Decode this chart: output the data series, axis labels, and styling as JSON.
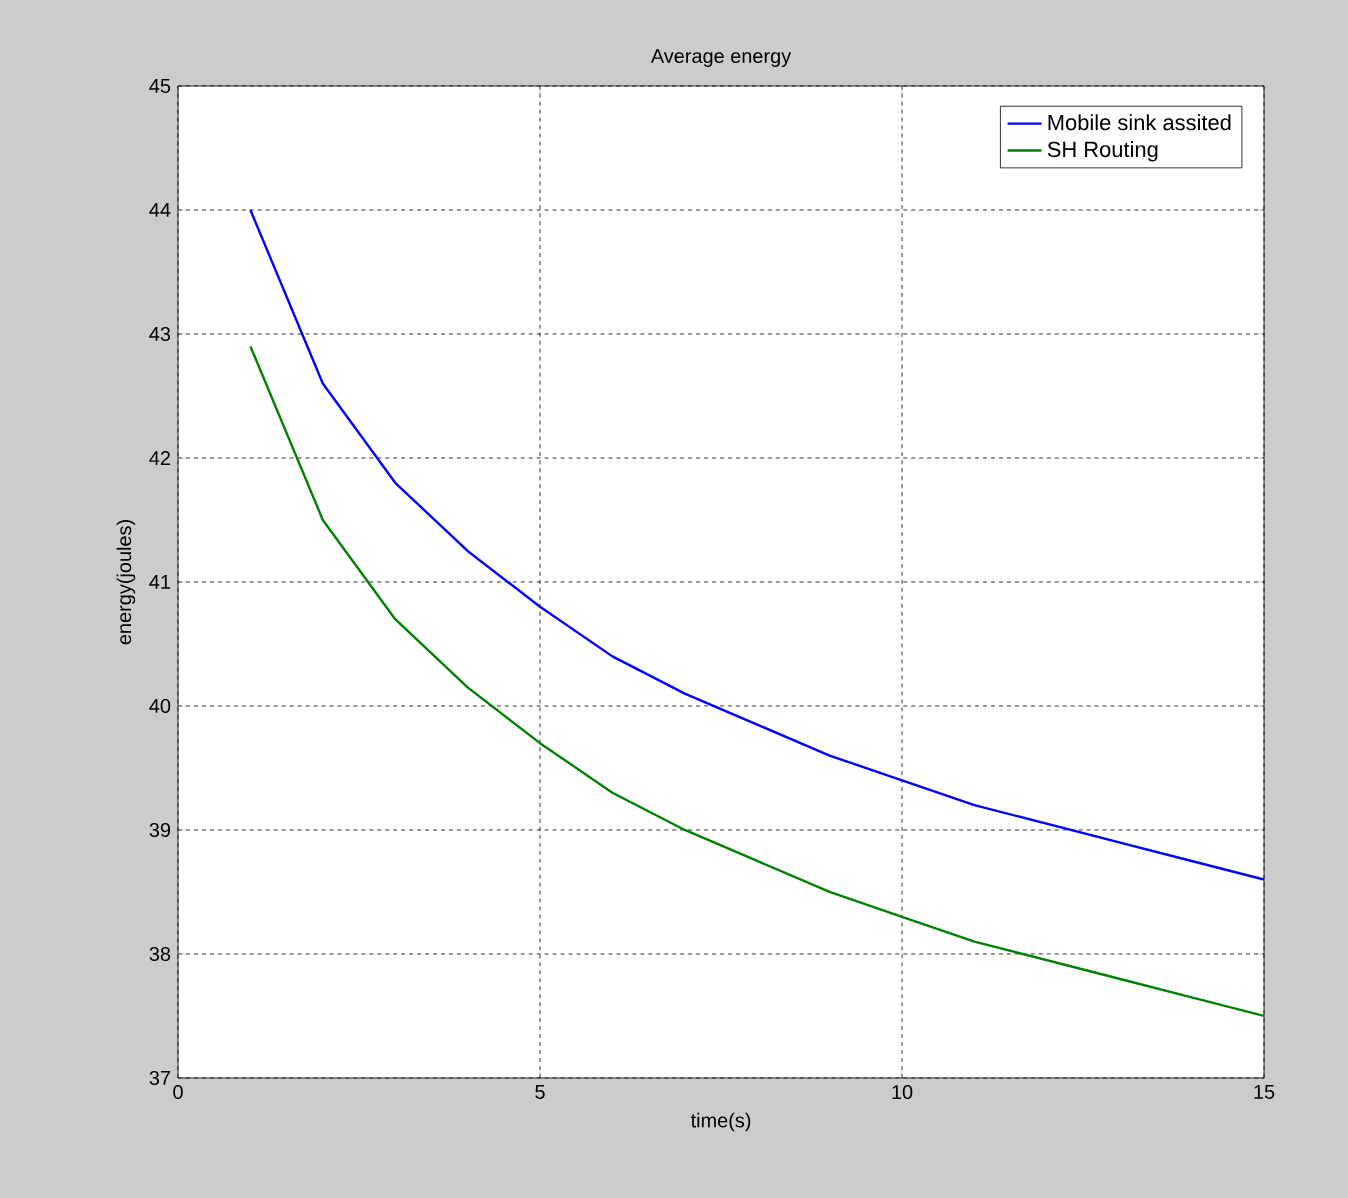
{
  "chart_data": {
    "type": "line",
    "title": "Average energy",
    "xlabel": "time(s)",
    "ylabel": "energy(joules)",
    "x": [
      1,
      2,
      3,
      4,
      5,
      6,
      7,
      8,
      9,
      10,
      11,
      12,
      13,
      14,
      15
    ],
    "series": [
      {
        "name": "Mobile sink assited",
        "color": "#0000ff",
        "values": [
          44,
          42.6,
          41.8,
          41.25,
          40.8,
          40.4,
          40.1,
          39.85,
          39.6,
          39.4,
          39.2,
          39.05,
          38.9,
          38.75,
          38.6
        ]
      },
      {
        "name": "SH Routing",
        "color": "#008000",
        "values": [
          42.9,
          41.5,
          40.7,
          40.15,
          39.7,
          39.3,
          39.0,
          38.75,
          38.5,
          38.3,
          38.1,
          37.95,
          37.8,
          37.65,
          37.5
        ]
      }
    ],
    "xlim": [
      0,
      15
    ],
    "ylim": [
      37,
      45
    ],
    "xticks": [
      0,
      5,
      10,
      15
    ],
    "yticks": [
      37,
      38,
      39,
      40,
      41,
      42,
      43,
      44,
      45
    ],
    "grid": true,
    "legend": "top right",
    "marker": "none",
    "line_style": "solid"
  }
}
